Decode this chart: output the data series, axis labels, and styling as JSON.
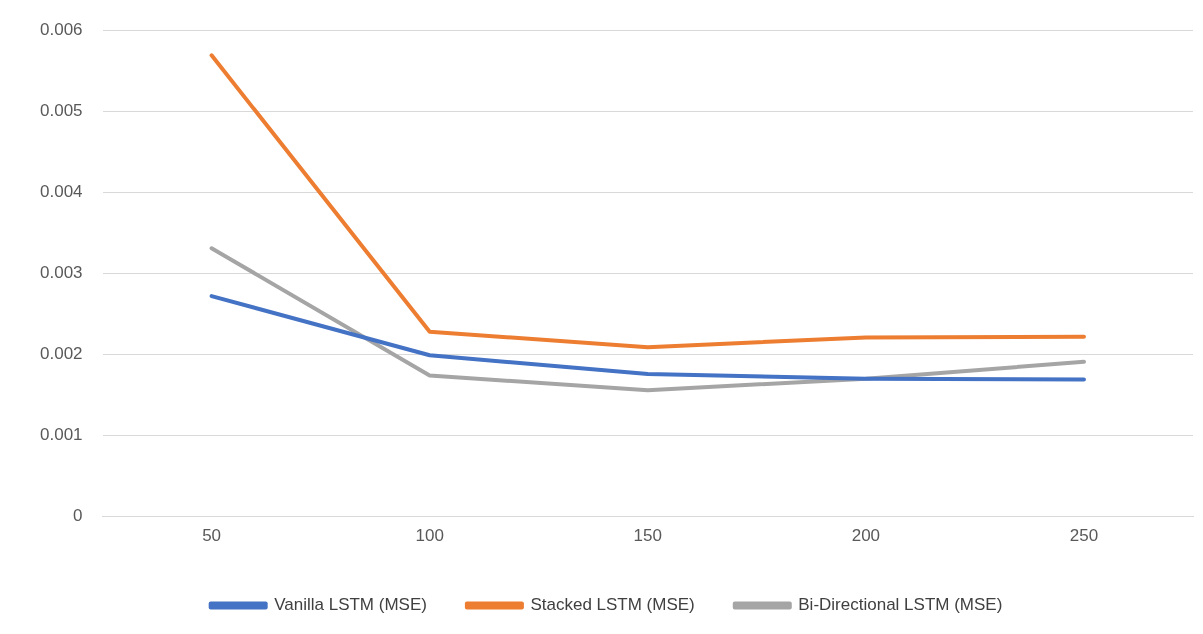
{
  "chart_data": {
    "type": "line",
    "categories": [
      "50",
      "100",
      "150",
      "200",
      "250"
    ],
    "series": [
      {
        "name": "Vanilla LSTM (MSE)",
        "color": "#4472c4",
        "values": [
          0.00272,
          0.00199,
          0.00176,
          0.0017,
          0.00169
        ]
      },
      {
        "name": "Stacked LSTM (MSE)",
        "color": "#ed7d31",
        "values": [
          0.00569,
          0.00228,
          0.00209,
          0.00221,
          0.00222
        ]
      },
      {
        "name": "Bi-Directional LSTM (MSE)",
        "color": "#a5a5a5",
        "values": [
          0.00331,
          0.00174,
          0.00156,
          0.0017,
          0.00191
        ]
      }
    ],
    "ylim": [
      0,
      0.006
    ],
    "yticks": [
      0,
      0.001,
      0.002,
      0.003,
      0.004,
      0.005,
      0.006
    ],
    "grid": "y",
    "legend": "bottom",
    "marker": "none",
    "line_style": "solid"
  }
}
